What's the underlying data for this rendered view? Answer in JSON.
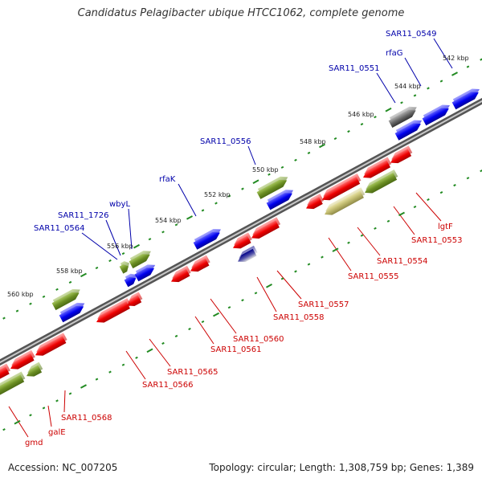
{
  "title": "Candidatus Pelagibacter ubique HTCC1062, complete genome",
  "footer": {
    "accession": "Accession: NC_007205",
    "summary": "Topology: circular; Length: 1,308,759 bp; Genes: 1,389"
  },
  "colors": {
    "forward_cds": "#0000dd",
    "reverse_cds": "#ee0000",
    "forward_gene": "#6b8e23",
    "reverse_gene": "#6b8e23",
    "backbone": "#888888",
    "ticks": "#228b22",
    "forward_label": "#0000aa",
    "reverse_label": "#cc0000"
  },
  "kbp_labels": [
    "542 kbp",
    "544 kbp",
    "546 kbp",
    "548 kbp",
    "550 kbp",
    "552 kbp",
    "554 kbp",
    "556 kbp",
    "558 kbp",
    "560 kbp"
  ],
  "forward_labels": [
    "SAR11_0549",
    "rfaG",
    "SAR11_0551",
    "SAR11_0556",
    "rfaK",
    "wbyL",
    "SAR11_1726",
    "SAR11_0564"
  ],
  "reverse_labels": [
    "lgtF",
    "SAR11_0553",
    "SAR11_0554",
    "SAR11_0555",
    "SAR11_0557",
    "SAR11_0558",
    "SAR11_0560",
    "SAR11_0561",
    "SAR11_0565",
    "SAR11_0566",
    "SAR11_0568",
    "galE",
    "gmd"
  ]
}
